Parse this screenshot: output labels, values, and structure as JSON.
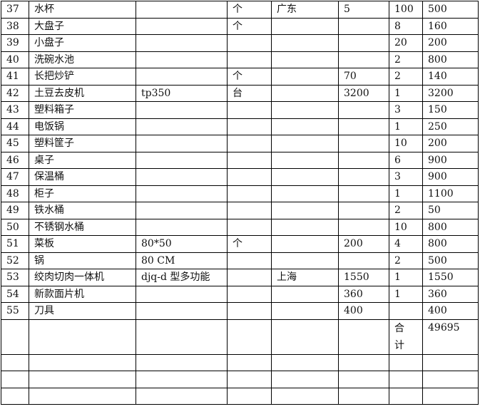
{
  "table": {
    "rows": [
      [
        "37",
        "水杯",
        "",
        "个",
        "广东",
        "5",
        "100",
        "500"
      ],
      [
        "38",
        "大盘子",
        "",
        "个",
        "",
        "",
        "8",
        "160"
      ],
      [
        "39",
        "小盘子",
        "",
        "",
        "",
        "",
        "20",
        "200"
      ],
      [
        "40",
        "洗碗水池",
        "",
        "",
        "",
        "",
        "2",
        "800"
      ],
      [
        "41",
        "长把炒铲",
        "",
        "个",
        "",
        "70",
        "2",
        "140"
      ],
      [
        "42",
        "土豆去皮机",
        "tp350",
        "台",
        "",
        "3200",
        "1",
        "3200"
      ],
      [
        "43",
        "塑料箱子",
        "",
        "",
        "",
        "",
        "3",
        "150"
      ],
      [
        "44",
        "电饭锅",
        "",
        "",
        "",
        "",
        "1",
        "250"
      ],
      [
        "45",
        "塑料筐子",
        "",
        "",
        "",
        "",
        "10",
        "200"
      ],
      [
        "46",
        "桌子",
        "",
        "",
        "",
        "",
        "6",
        "900"
      ],
      [
        "47",
        "保温桶",
        "",
        "",
        "",
        "",
        "3",
        "900"
      ],
      [
        "48",
        "柜子",
        "",
        "",
        "",
        "",
        "1",
        "1100"
      ],
      [
        "49",
        "铁水桶",
        "",
        "",
        "",
        "",
        "2",
        "50"
      ],
      [
        "50",
        "不锈钢水桶",
        "",
        "",
        "",
        "",
        "10",
        "800"
      ],
      [
        "51",
        "菜板",
        "80*50",
        "个",
        "",
        "200",
        "4",
        "800"
      ],
      [
        "52",
        "锅",
        "80    CM",
        "",
        "",
        "",
        "2",
        "500"
      ],
      [
        "53",
        "绞肉切肉一体机",
        "djq-d 型多功能",
        "",
        "上海",
        "1550",
        "1",
        "1550"
      ],
      [
        "54",
        "新款面片机",
        "",
        "",
        "",
        "360",
        "1",
        "360"
      ],
      [
        "55",
        "刀具",
        "",
        "",
        "",
        "400",
        "",
        "400"
      ],
      [
        "",
        "",
        "",
        "",
        "",
        "",
        "合计",
        "49695"
      ],
      [
        "",
        "",
        "",
        "",
        "",
        "",
        "",
        ""
      ],
      [
        "",
        "",
        "",
        "",
        "",
        "",
        "",
        ""
      ],
      [
        "",
        "",
        "",
        "",
        "",
        "",
        "",
        ""
      ]
    ]
  }
}
